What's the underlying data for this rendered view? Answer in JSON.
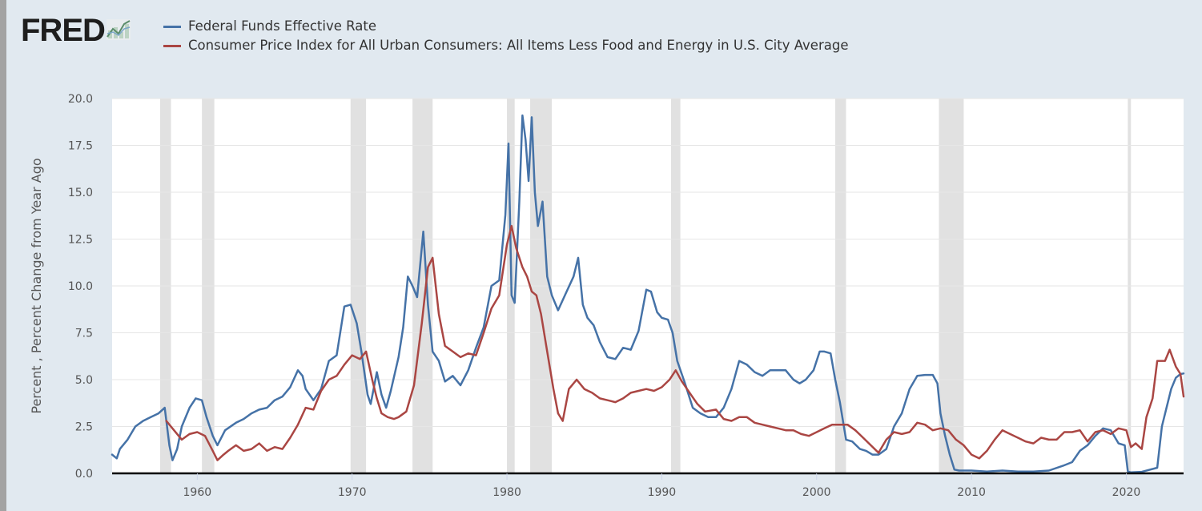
{
  "logo": {
    "text": "FRED",
    "icon": "trend-line-icon"
  },
  "chart_data": {
    "type": "line",
    "title": "",
    "xlabel": "",
    "ylabel": "Percent , Percent Change from Year Ago",
    "xlim": [
      1954.5,
      2023.7
    ],
    "ylim": [
      0,
      20
    ],
    "yticks": [
      0.0,
      2.5,
      5.0,
      7.5,
      10.0,
      12.5,
      15.0,
      17.5,
      20.0
    ],
    "ytick_labels": [
      "0.0",
      "2.5",
      "5.0",
      "7.5",
      "10.0",
      "12.5",
      "15.0",
      "17.5",
      "20.0"
    ],
    "xticks": [
      1960,
      1970,
      1980,
      1990,
      2000,
      2010,
      2020
    ],
    "xtick_labels": [
      "1960",
      "1970",
      "1980",
      "1990",
      "2000",
      "2010",
      "2020"
    ],
    "grid": "horizontal",
    "legend_position": "top-left",
    "recessions": [
      [
        1957.6,
        1958.3
      ],
      [
        1960.3,
        1961.1
      ],
      [
        1969.9,
        1970.9
      ],
      [
        1973.9,
        1975.2
      ],
      [
        1980.0,
        1980.5
      ],
      [
        1981.5,
        1982.9
      ],
      [
        1990.6,
        1991.2
      ],
      [
        2001.2,
        2001.9
      ],
      [
        2007.9,
        2009.5
      ],
      [
        2020.1,
        2020.3
      ]
    ],
    "series": [
      {
        "name": "Federal Funds Effective Rate",
        "color": "#4572a7",
        "x": [
          1954.5,
          1954.8,
          1955.0,
          1955.5,
          1956.0,
          1956.5,
          1957.0,
          1957.5,
          1957.9,
          1958.2,
          1958.4,
          1958.7,
          1959.0,
          1959.5,
          1959.9,
          1960.3,
          1960.6,
          1961.0,
          1961.3,
          1961.8,
          1962.5,
          1963.0,
          1963.5,
          1964.0,
          1964.5,
          1965.0,
          1965.5,
          1966.0,
          1966.5,
          1966.8,
          1967.0,
          1967.5,
          1968.0,
          1968.5,
          1969.0,
          1969.5,
          1969.9,
          1970.3,
          1970.6,
          1971.0,
          1971.2,
          1971.6,
          1971.9,
          1972.2,
          1972.5,
          1973.0,
          1973.3,
          1973.6,
          1973.9,
          1974.2,
          1974.6,
          1974.9,
          1975.2,
          1975.6,
          1976.0,
          1976.5,
          1977.0,
          1977.5,
          1978.0,
          1978.5,
          1979.0,
          1979.5,
          1979.9,
          1980.1,
          1980.3,
          1980.5,
          1980.8,
          1981.0,
          1981.2,
          1981.4,
          1981.6,
          1981.8,
          1982.0,
          1982.3,
          1982.6,
          1982.9,
          1983.3,
          1983.8,
          1984.3,
          1984.6,
          1984.9,
          1985.2,
          1985.6,
          1986.0,
          1986.5,
          1987.0,
          1987.5,
          1988.0,
          1988.5,
          1989.0,
          1989.3,
          1989.7,
          1990.0,
          1990.4,
          1990.7,
          1991.0,
          1991.5,
          1992.0,
          1992.5,
          1993.0,
          1993.5,
          1994.0,
          1994.5,
          1995.0,
          1995.5,
          1996.0,
          1996.5,
          1997.0,
          1997.5,
          1998.0,
          1998.5,
          1998.9,
          1999.3,
          1999.8,
          2000.2,
          2000.5,
          2000.9,
          2001.2,
          2001.5,
          2001.9,
          2002.3,
          2002.8,
          2003.2,
          2003.6,
          2004.0,
          2004.5,
          2005.0,
          2005.5,
          2006.0,
          2006.5,
          2007.0,
          2007.5,
          2007.8,
          2008.0,
          2008.3,
          2008.6,
          2008.9,
          2009.2,
          2010.0,
          2011.0,
          2012.0,
          2013.0,
          2014.0,
          2015.0,
          2015.9,
          2016.5,
          2017.0,
          2017.5,
          2018.0,
          2018.5,
          2019.0,
          2019.5,
          2019.9,
          2020.1,
          2020.3,
          2021.0,
          2022.0,
          2022.3,
          2022.6,
          2022.9,
          2023.2,
          2023.5,
          2023.7
        ],
        "y": [
          1.0,
          0.8,
          1.3,
          1.8,
          2.5,
          2.8,
          3.0,
          3.2,
          3.5,
          1.5,
          0.7,
          1.3,
          2.5,
          3.5,
          4.0,
          3.9,
          3.0,
          2.0,
          1.5,
          2.3,
          2.7,
          2.9,
          3.2,
          3.4,
          3.5,
          3.9,
          4.1,
          4.6,
          5.5,
          5.2,
          4.5,
          3.9,
          4.5,
          6.0,
          6.3,
          8.9,
          9.0,
          8.0,
          6.5,
          4.2,
          3.7,
          5.4,
          4.2,
          3.5,
          4.4,
          6.2,
          7.8,
          10.5,
          10.0,
          9.4,
          12.9,
          9.0,
          6.5,
          6.0,
          4.9,
          5.2,
          4.7,
          5.5,
          6.7,
          7.8,
          10.0,
          10.3,
          13.8,
          17.6,
          9.5,
          9.1,
          14.5,
          19.1,
          17.8,
          15.6,
          19.0,
          15.0,
          13.2,
          14.5,
          10.5,
          9.5,
          8.7,
          9.6,
          10.5,
          11.5,
          9.0,
          8.3,
          7.9,
          7.0,
          6.2,
          6.1,
          6.7,
          6.6,
          7.6,
          9.8,
          9.7,
          8.6,
          8.3,
          8.2,
          7.5,
          6.0,
          4.8,
          3.5,
          3.2,
          3.0,
          3.0,
          3.5,
          4.5,
          6.0,
          5.8,
          5.4,
          5.2,
          5.5,
          5.5,
          5.5,
          5.0,
          4.8,
          5.0,
          5.5,
          6.5,
          6.5,
          6.4,
          5.0,
          3.8,
          1.8,
          1.7,
          1.3,
          1.2,
          1.0,
          1.0,
          1.3,
          2.5,
          3.2,
          4.5,
          5.2,
          5.25,
          5.25,
          4.8,
          3.2,
          2.0,
          1.0,
          0.2,
          0.15,
          0.15,
          0.1,
          0.15,
          0.1,
          0.1,
          0.15,
          0.4,
          0.6,
          1.2,
          1.5,
          2.0,
          2.4,
          2.3,
          1.6,
          1.5,
          0.1,
          0.05,
          0.08,
          0.3,
          2.5,
          3.5,
          4.5,
          5.1,
          5.3,
          5.33
        ]
      },
      {
        "name": "Consumer Price Index for All Urban Consumers: All Items Less Food and Energy in U.S. City Average",
        "color": "#aa4643",
        "x": [
          1958.0,
          1958.5,
          1959.0,
          1959.5,
          1960.0,
          1960.5,
          1961.0,
          1961.3,
          1961.7,
          1962.0,
          1962.5,
          1963.0,
          1963.5,
          1964.0,
          1964.5,
          1965.0,
          1965.5,
          1966.0,
          1966.5,
          1967.0,
          1967.5,
          1968.0,
          1968.5,
          1969.0,
          1969.5,
          1970.0,
          1970.5,
          1970.9,
          1971.3,
          1971.6,
          1971.9,
          1972.3,
          1972.7,
          1973.0,
          1973.5,
          1974.0,
          1974.5,
          1974.9,
          1975.2,
          1975.6,
          1976.0,
          1976.5,
          1977.0,
          1977.5,
          1978.0,
          1978.5,
          1979.0,
          1979.5,
          1980.0,
          1980.3,
          1980.6,
          1981.0,
          1981.3,
          1981.6,
          1981.9,
          1982.2,
          1982.6,
          1983.0,
          1983.3,
          1983.6,
          1984.0,
          1984.5,
          1985.0,
          1985.5,
          1986.0,
          1986.5,
          1987.0,
          1987.5,
          1988.0,
          1988.5,
          1989.0,
          1989.5,
          1990.0,
          1990.5,
          1990.9,
          1991.3,
          1991.8,
          1992.3,
          1992.8,
          1993.5,
          1994.0,
          1994.5,
          1995.0,
          1995.5,
          1996.0,
          1996.5,
          1997.0,
          1997.5,
          1998.0,
          1998.5,
          1999.0,
          1999.5,
          2000.0,
          2000.5,
          2001.0,
          2001.5,
          2002.0,
          2002.5,
          2003.0,
          2003.5,
          2004.0,
          2004.5,
          2005.0,
          2005.5,
          2006.0,
          2006.5,
          2007.0,
          2007.5,
          2008.0,
          2008.5,
          2009.0,
          2009.5,
          2010.0,
          2010.5,
          2011.0,
          2011.5,
          2012.0,
          2012.5,
          2013.0,
          2013.5,
          2014.0,
          2014.5,
          2015.0,
          2015.5,
          2016.0,
          2016.5,
          2017.0,
          2017.5,
          2018.0,
          2018.5,
          2019.0,
          2019.5,
          2020.0,
          2020.3,
          2020.6,
          2021.0,
          2021.3,
          2021.7,
          2022.0,
          2022.5,
          2022.8,
          2023.2,
          2023.5,
          2023.7
        ],
        "y": [
          2.8,
          2.3,
          1.8,
          2.1,
          2.2,
          2.0,
          1.2,
          0.7,
          1.0,
          1.2,
          1.5,
          1.2,
          1.3,
          1.6,
          1.2,
          1.4,
          1.3,
          1.9,
          2.6,
          3.5,
          3.4,
          4.4,
          5.0,
          5.2,
          5.8,
          6.3,
          6.1,
          6.5,
          5.0,
          4.0,
          3.2,
          3.0,
          2.9,
          3.0,
          3.3,
          4.7,
          8.0,
          11.0,
          11.5,
          8.5,
          6.8,
          6.5,
          6.2,
          6.4,
          6.3,
          7.5,
          8.8,
          9.5,
          12.2,
          13.2,
          12.0,
          11.0,
          10.5,
          9.7,
          9.5,
          8.5,
          6.5,
          4.5,
          3.2,
          2.8,
          4.5,
          5.0,
          4.5,
          4.3,
          4.0,
          3.9,
          3.8,
          4.0,
          4.3,
          4.4,
          4.5,
          4.4,
          4.6,
          5.0,
          5.5,
          4.9,
          4.3,
          3.7,
          3.3,
          3.4,
          2.9,
          2.8,
          3.0,
          3.0,
          2.7,
          2.6,
          2.5,
          2.4,
          2.3,
          2.3,
          2.1,
          2.0,
          2.2,
          2.4,
          2.6,
          2.6,
          2.6,
          2.3,
          1.9,
          1.5,
          1.1,
          1.8,
          2.2,
          2.1,
          2.2,
          2.7,
          2.6,
          2.3,
          2.4,
          2.3,
          1.8,
          1.5,
          1.0,
          0.8,
          1.2,
          1.8,
          2.3,
          2.1,
          1.9,
          1.7,
          1.6,
          1.9,
          1.8,
          1.8,
          2.2,
          2.2,
          2.3,
          1.7,
          2.2,
          2.3,
          2.1,
          2.4,
          2.3,
          1.4,
          1.6,
          1.3,
          3.0,
          4.0,
          6.0,
          6.0,
          6.6,
          5.7,
          5.3,
          4.1
        ]
      }
    ]
  }
}
